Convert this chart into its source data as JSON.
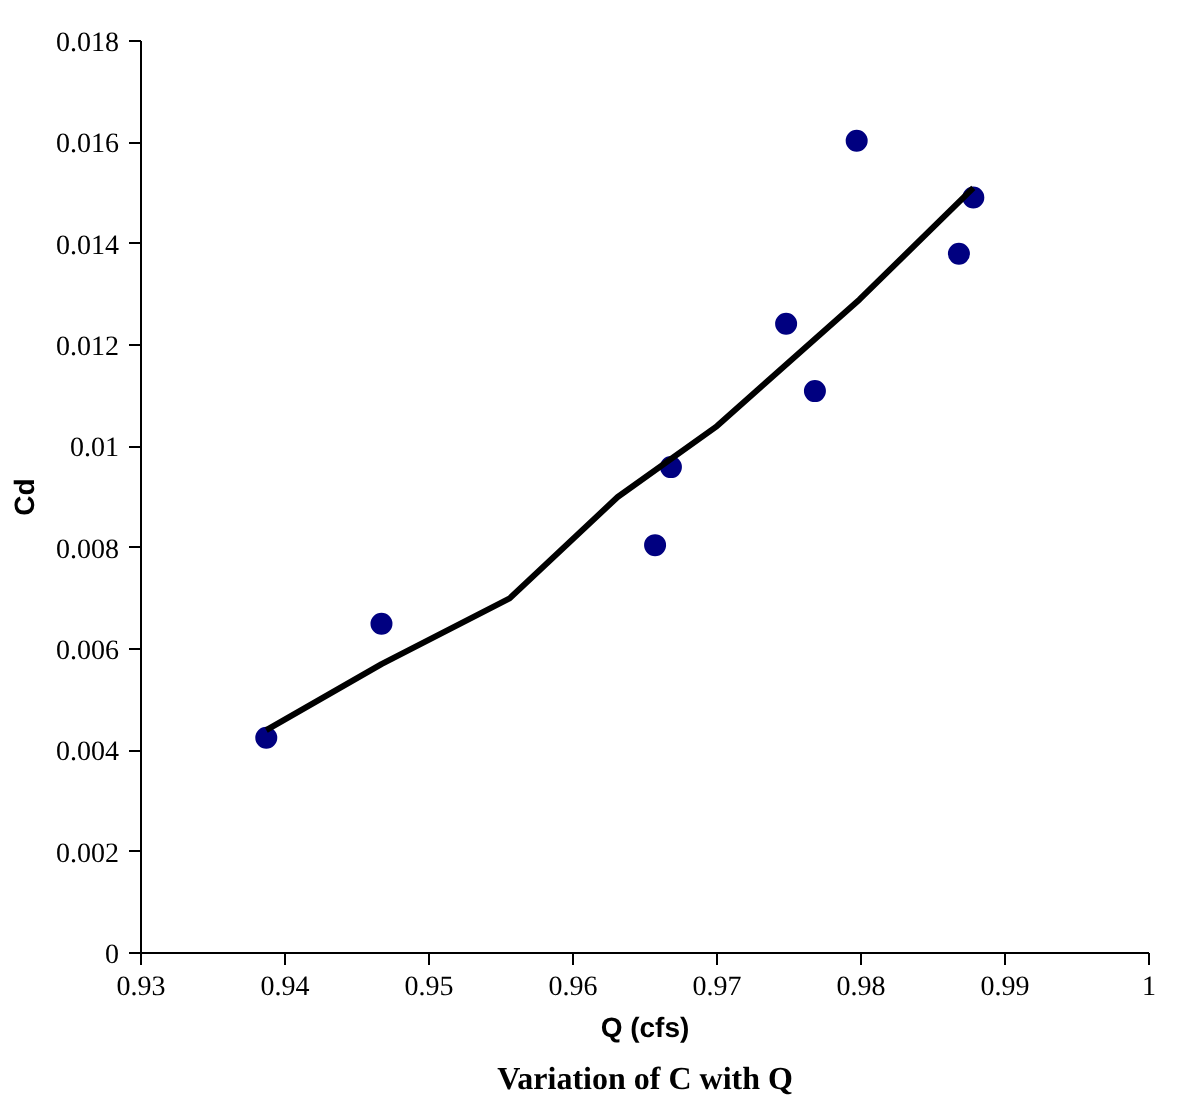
{
  "chart_data": {
    "type": "scatter",
    "title": "Variation of C with Q",
    "xlabel": "Q (cfs)",
    "ylabel": "Cd",
    "xlim": [
      0.93,
      1
    ],
    "xticks": [
      0.93,
      0.94,
      0.95,
      0.96,
      0.97,
      0.98,
      0.99,
      1
    ],
    "ylim": [
      0,
      0.018
    ],
    "yticks": [
      0,
      0.002,
      0.004,
      0.006,
      0.008,
      0.01,
      0.012,
      0.014,
      0.016,
      0.018
    ],
    "grid": false,
    "series": [
      {
        "marker": "circle",
        "color": "#000080",
        "x": [
          0.9387,
          0.9467,
          0.9657,
          0.9668,
          0.9748,
          0.9768,
          0.9797,
          0.9868,
          0.9878
        ],
        "values": [
          0.00425,
          0.0065,
          0.00805,
          0.00959,
          0.01242,
          0.01109,
          0.01603,
          0.0138,
          0.01491
        ]
      },
      {
        "type": "line",
        "color": "#000000",
        "line_style": "solid",
        "x": [
          0.9387,
          0.9467,
          0.9556,
          0.9631,
          0.97,
          0.9799,
          0.9878
        ],
        "values": [
          0.0044,
          0.0057,
          0.007,
          0.009,
          0.0104,
          0.0129,
          0.0151
        ]
      }
    ]
  }
}
